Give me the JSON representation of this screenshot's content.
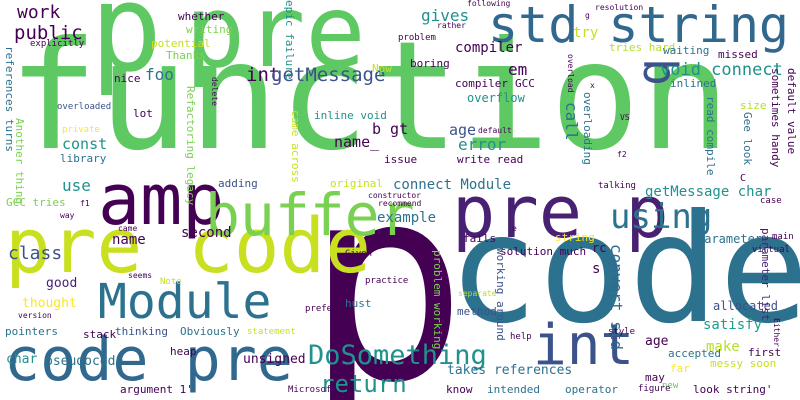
{
  "background_color": "#ffffff",
  "words": [
    {
      "text": "function",
      "color": "#5ec962",
      "vertical": false
    },
    {
      "text": "p",
      "color": "#440154",
      "vertical": false
    },
    {
      "text": "code",
      "color": "#2c728e",
      "vertical": false
    },
    {
      "text": "pre",
      "color": "#5ec962",
      "vertical": false
    },
    {
      "text": "p",
      "color": "#5ec962",
      "vertical": false
    },
    {
      "text": "pre code",
      "color": "#c8e020",
      "vertical": false
    },
    {
      "text": "std string",
      "color": "#31688e",
      "vertical": false
    },
    {
      "text": "amp",
      "color": "#440154",
      "vertical": false
    },
    {
      "text": "buffer",
      "color": "#7ad151",
      "vertical": false
    },
    {
      "text": "pre p",
      "color": "#482173",
      "vertical": false
    },
    {
      "text": "Module",
      "color": "#2c728e",
      "vertical": false
    },
    {
      "text": "code pre",
      "color": "#31688e",
      "vertical": false
    },
    {
      "text": "int",
      "color": "#3b528b",
      "vertical": false
    },
    {
      "text": "DoSomething",
      "color": "#21918c",
      "vertical": false
    },
    {
      "text": "using",
      "color": "#2c728e",
      "vertical": false
    },
    {
      "text": "b",
      "color": "#3b528b",
      "vertical": true
    },
    {
      "text": "return",
      "color": "#21918c",
      "vertical": false
    },
    {
      "text": "int",
      "color": "#440154",
      "vertical": false
    },
    {
      "text": "getMessage",
      "color": "#3b528b",
      "vertical": false
    },
    {
      "text": "void connect",
      "color": "#21918c",
      "vertical": false
    },
    {
      "text": "public",
      "color": "#440154",
      "vertical": false
    },
    {
      "text": "class",
      "color": "#3b528b",
      "vertical": false
    },
    {
      "text": "work",
      "color": "#440154",
      "vertical": false
    },
    {
      "text": "foo",
      "color": "#2c728e",
      "vertical": false
    },
    {
      "text": "em",
      "color": "#440154",
      "vertical": false
    },
    {
      "text": "gives",
      "color": "#21918c",
      "vertical": false
    },
    {
      "text": "try",
      "color": "#c8e020",
      "vertical": false
    },
    {
      "text": "compiler",
      "color": "#440154",
      "vertical": false
    },
    {
      "text": "call",
      "color": "#2c728e",
      "vertical": true
    },
    {
      "text": "b gt",
      "color": "#440154",
      "vertical": false
    },
    {
      "text": "age",
      "color": "#3b528b",
      "vertical": false
    },
    {
      "text": "name_",
      "color": "#440154",
      "vertical": false
    },
    {
      "text": "error",
      "color": "#21918c",
      "vertical": false
    },
    {
      "text": "const",
      "color": "#21918c",
      "vertical": false
    },
    {
      "text": "use",
      "color": "#21918c",
      "vertical": false
    },
    {
      "text": "name",
      "color": "#440154",
      "vertical": false
    },
    {
      "text": "connect Module",
      "color": "#2c728e",
      "vertical": false
    },
    {
      "text": "getMessage char",
      "color": "#21918c",
      "vertical": false
    },
    {
      "text": "example",
      "color": "#2c728e",
      "vertical": false
    },
    {
      "text": "second",
      "color": "#440154",
      "vertical": false
    },
    {
      "text": "convert std",
      "color": "#31688e",
      "vertical": true
    },
    {
      "text": "thought",
      "color": "#fde725",
      "vertical": false
    },
    {
      "text": "good",
      "color": "#482173",
      "vertical": false
    },
    {
      "text": "unsigned",
      "color": "#440154",
      "vertical": false
    },
    {
      "text": "char",
      "color": "#21918c",
      "vertical": false
    },
    {
      "text": "make",
      "color": "#b5de2b",
      "vertical": false
    },
    {
      "text": "satisfy",
      "color": "#1f9e89",
      "vertical": false
    },
    {
      "text": "age",
      "color": "#440154",
      "vertical": false
    },
    {
      "text": "pseudocode",
      "color": "#2c728e",
      "vertical": false
    },
    {
      "text": "takes references",
      "color": "#2c728e",
      "vertical": false
    },
    {
      "text": "parameter",
      "color": "#2c728e",
      "vertical": false
    },
    {
      "text": "allocated",
      "color": "#3b528b",
      "vertical": false
    },
    {
      "text": "s",
      "color": "#440154",
      "vertical": false
    },
    {
      "text": "rc",
      "color": "#440154",
      "vertical": false
    },
    {
      "text": "overflow",
      "color": "#21918c",
      "vertical": false
    },
    {
      "text": "inline void",
      "color": "#21918c",
      "vertical": false
    },
    {
      "text": "lot",
      "color": "#440154",
      "vertical": false
    },
    {
      "text": "nice",
      "color": "#440154",
      "vertical": false
    },
    {
      "text": "whether",
      "color": "#440154",
      "vertical": false
    },
    {
      "text": "writing",
      "color": "#7ad151",
      "vertical": false
    },
    {
      "text": "potential",
      "color": "#c8e020",
      "vertical": false
    },
    {
      "text": "Thanks",
      "color": "#7ad151",
      "vertical": false
    },
    {
      "text": "epic failure",
      "color": "#21918c",
      "vertical": true
    },
    {
      "text": "Now",
      "color": "#c8e020",
      "vertical": false
    },
    {
      "text": "boring",
      "color": "#440154",
      "vertical": false
    },
    {
      "text": "compiler",
      "color": "#440154",
      "vertical": false
    },
    {
      "text": "GCC",
      "color": "#440154",
      "vertical": false
    },
    {
      "text": "inlined",
      "color": "#2c728e",
      "vertical": false
    },
    {
      "text": "tries hard",
      "color": "#b5de2b",
      "vertical": false
    },
    {
      "text": "waiting",
      "color": "#2c728e",
      "vertical": false
    },
    {
      "text": "missed",
      "color": "#440154",
      "vertical": false
    },
    {
      "text": "overloaded",
      "color": "#3b528b",
      "vertical": false
    },
    {
      "text": "explicitly",
      "color": "#440154",
      "vertical": false
    },
    {
      "text": "references turns",
      "color": "#2c728e",
      "vertical": true
    },
    {
      "text": "Another thing",
      "color": "#7ad151",
      "vertical": true
    },
    {
      "text": "GCC tries",
      "color": "#7ad151",
      "vertical": false
    },
    {
      "text": "library",
      "color": "#2c728e",
      "vertical": false
    },
    {
      "text": "private",
      "color": "#fde725",
      "vertical": false
    },
    {
      "text": "original",
      "color": "#c8e020",
      "vertical": false
    },
    {
      "text": "adding",
      "color": "#3b528b",
      "vertical": false
    },
    {
      "text": "came across",
      "color": "#c8e020",
      "vertical": true
    },
    {
      "text": "Refactoring legacy",
      "color": "#7ad151",
      "vertical": true
    },
    {
      "text": "issue",
      "color": "#440154",
      "vertical": false
    },
    {
      "text": "write read",
      "color": "#440154",
      "vertical": false
    },
    {
      "text": "overloading",
      "color": "#2c728e",
      "vertical": true
    },
    {
      "text": "read compile",
      "color": "#2c728e",
      "vertical": true
    },
    {
      "text": "Gee look",
      "color": "#2c728e",
      "vertical": true
    },
    {
      "text": "sometimes handy",
      "color": "#440154",
      "vertical": true
    },
    {
      "text": "default value",
      "color": "#440154",
      "vertical": true
    },
    {
      "text": "size",
      "color": "#b5de2b",
      "vertical": false
    },
    {
      "text": "talking",
      "color": "#440154",
      "vertical": false
    },
    {
      "text": "case",
      "color": "#440154",
      "vertical": false
    },
    {
      "text": "fails",
      "color": "#440154",
      "vertical": false
    },
    {
      "text": "solution much",
      "color": "#440154",
      "vertical": false
    },
    {
      "text": "string",
      "color": "#fde725",
      "vertical": false
    },
    {
      "text": "parameter list",
      "color": "#482173",
      "vertical": true
    },
    {
      "text": "main",
      "color": "#440154",
      "vertical": false
    },
    {
      "text": "virtual",
      "color": "#440154",
      "vertical": false
    },
    {
      "text": "Given",
      "color": "#440154",
      "vertical": false
    },
    {
      "text": "hust",
      "color": "#2c728e",
      "vertical": false
    },
    {
      "text": "problem working",
      "color": "#7ad151",
      "vertical": true
    },
    {
      "text": "working around",
      "color": "#3b528b",
      "vertical": true
    },
    {
      "text": "method",
      "color": "#3b528b",
      "vertical": false
    },
    {
      "text": "help",
      "color": "#440154",
      "vertical": false
    },
    {
      "text": "accepted",
      "color": "#2c728e",
      "vertical": false
    },
    {
      "text": "first",
      "color": "#440154",
      "vertical": false
    },
    {
      "text": "messy soon",
      "color": "#c8e020",
      "vertical": false
    },
    {
      "text": "look string'",
      "color": "#440154",
      "vertical": false
    },
    {
      "text": "may",
      "color": "#440154",
      "vertical": false
    },
    {
      "text": "far",
      "color": "#fde725",
      "vertical": false
    },
    {
      "text": "new",
      "color": "#5ec962",
      "vertical": false
    },
    {
      "text": "pointers",
      "color": "#2c728e",
      "vertical": false
    },
    {
      "text": "stack",
      "color": "#440154",
      "vertical": false
    },
    {
      "text": "thinking",
      "color": "#3b528b",
      "vertical": false
    },
    {
      "text": "Obviously",
      "color": "#2c728e",
      "vertical": false
    },
    {
      "text": "heap",
      "color": "#440154",
      "vertical": false
    },
    {
      "text": "argument 1'",
      "color": "#440154",
      "vertical": false
    },
    {
      "text": "Microsoft",
      "color": "#440154",
      "vertical": false
    },
    {
      "text": "know",
      "color": "#440154",
      "vertical": false
    },
    {
      "text": "intended",
      "color": "#2c728e",
      "vertical": false
    },
    {
      "text": "operator",
      "color": "#2c728e",
      "vertical": false
    },
    {
      "text": "statement",
      "color": "#c8e020",
      "vertical": false
    },
    {
      "text": "prefer",
      "color": "#440154",
      "vertical": false
    },
    {
      "text": "practice",
      "color": "#440154",
      "vertical": false
    },
    {
      "text": "figure",
      "color": "#440154",
      "vertical": false
    },
    {
      "text": "style",
      "color": "#440154",
      "vertical": false
    },
    {
      "text": "Note",
      "color": "#c8e020",
      "vertical": false
    },
    {
      "text": "seems",
      "color": "#440154",
      "vertical": false
    },
    {
      "text": "version",
      "color": "#440154",
      "vertical": false
    },
    {
      "text": "came",
      "color": "#440154",
      "vertical": false
    },
    {
      "text": "way",
      "color": "#440154",
      "vertical": false
    },
    {
      "text": "f1",
      "color": "#440154",
      "vertical": false
    },
    {
      "text": "constructor",
      "color": "#440154",
      "vertical": false
    },
    {
      "text": "recommend",
      "color": "#440154",
      "vertical": false
    },
    {
      "text": "separate",
      "color": "#b5de2b",
      "vertical": false
    },
    {
      "text": "following",
      "color": "#440154",
      "vertical": false
    },
    {
      "text": "rather",
      "color": "#440154",
      "vertical": false
    },
    {
      "text": "resolution",
      "color": "#440154",
      "vertical": false
    },
    {
      "text": "overload",
      "color": "#440154",
      "vertical": true
    },
    {
      "text": "default",
      "color": "#440154",
      "vertical": false
    },
    {
      "text": "VS",
      "color": "#440154",
      "vertical": false
    },
    {
      "text": "f2",
      "color": "#440154",
      "vertical": false
    },
    {
      "text": "x",
      "color": "#440154",
      "vertical": false
    },
    {
      "text": "delete",
      "color": "#440154",
      "vertical": true
    },
    {
      "text": "Either",
      "color": "#440154",
      "vertical": true
    },
    {
      "text": "C",
      "color": "#440154",
      "vertical": false
    },
    {
      "text": "e",
      "color": "#440154",
      "vertical": false
    },
    {
      "text": "g",
      "color": "#440154",
      "vertical": false
    },
    {
      "text": "problem",
      "color": "#440154",
      "vertical": false
    }
  ]
}
